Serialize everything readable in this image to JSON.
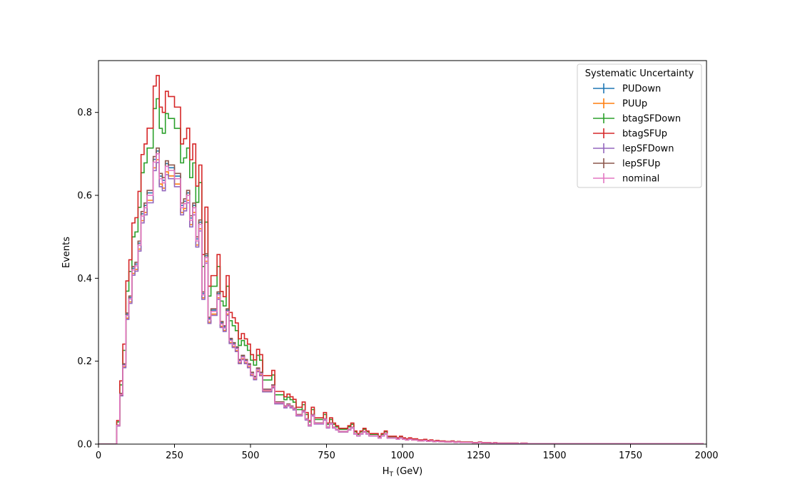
{
  "chart_data": {
    "type": "line",
    "step": true,
    "xlabel": "H",
    "xlabel_sub": "T",
    "xlabel_unit": " (GeV)",
    "ylabel": "Events",
    "xlim": [
      0,
      2000
    ],
    "ylim": [
      0,
      0.925
    ],
    "xticks": [
      0,
      250,
      500,
      750,
      1000,
      1250,
      1500,
      1750,
      2000
    ],
    "yticks": [
      0.0,
      0.2,
      0.4,
      0.6,
      0.8
    ],
    "grid": false,
    "legend": {
      "title": "Systematic Uncertainty",
      "placement": "top-right"
    },
    "bin_width": 10,
    "bin_edges_start": 0,
    "shape_centers": [
      5,
      15,
      25,
      35,
      45,
      55,
      65,
      75,
      85,
      95,
      105,
      115,
      125,
      135,
      145,
      155,
      165,
      175,
      185,
      195,
      205,
      215,
      225,
      235,
      245,
      255,
      265,
      275,
      285,
      295,
      305,
      315,
      325,
      335,
      345,
      355,
      365,
      375,
      385,
      395,
      405,
      415,
      425,
      435,
      445,
      455,
      465,
      475,
      485,
      495,
      505,
      515,
      525,
      535,
      545,
      555,
      565,
      575,
      585,
      595,
      605,
      615,
      625,
      635,
      645,
      655,
      665,
      675,
      685,
      695,
      705,
      715,
      725,
      735,
      745,
      755,
      765,
      775,
      785,
      795,
      805,
      815,
      825,
      835,
      845,
      855,
      865,
      875,
      885,
      895,
      905,
      915,
      925,
      935,
      945,
      955,
      965,
      975,
      985,
      995,
      1005,
      1015,
      1025,
      1035,
      1045,
      1055,
      1065,
      1075,
      1085,
      1095,
      1105,
      1115,
      1125,
      1135,
      1145,
      1155,
      1165,
      1175,
      1185,
      1195,
      1205,
      1215,
      1225,
      1235,
      1245,
      1255,
      1265,
      1275,
      1285,
      1295,
      1305,
      1315,
      1325,
      1335,
      1345,
      1355,
      1365,
      1375,
      1385,
      1395,
      1405,
      1415,
      1425,
      1435,
      1445,
      1455,
      1465,
      1475,
      1485,
      1495,
      1505,
      1515,
      1525,
      1535,
      1545,
      1555,
      1565,
      1575,
      1585,
      1595,
      1605,
      1615,
      1625,
      1635,
      1645,
      1655,
      1665,
      1675,
      1685,
      1695,
      1705,
      1715,
      1725,
      1735,
      1745,
      1755,
      1765,
      1775,
      1785,
      1795,
      1805,
      1815,
      1825,
      1835,
      1845,
      1855,
      1865,
      1875,
      1885,
      1895,
      1905,
      1915,
      1925,
      1935,
      1945,
      1955,
      1965,
      1975,
      1985,
      1995
    ],
    "nominal_values": [
      0,
      0,
      0,
      0,
      0,
      0,
      0.045,
      0.12,
      0.19,
      0.31,
      0.35,
      0.42,
      0.43,
      0.48,
      0.55,
      0.57,
      0.6,
      0.6,
      0.68,
      0.7,
      0.64,
      0.63,
      0.67,
      0.66,
      0.66,
      0.64,
      0.64,
      0.57,
      0.58,
      0.6,
      0.54,
      0.57,
      0.49,
      0.53,
      0.36,
      0.45,
      0.3,
      0.32,
      0.32,
      0.36,
      0.29,
      0.28,
      0.32,
      0.25,
      0.24,
      0.23,
      0.2,
      0.21,
      0.2,
      0.19,
      0.17,
      0.16,
      0.18,
      0.17,
      0.13,
      0.13,
      0.13,
      0.14,
      0.1,
      0.1,
      0.1,
      0.09,
      0.095,
      0.09,
      0.085,
      0.07,
      0.07,
      0.08,
      0.06,
      0.045,
      0.07,
      0.05,
      0.05,
      0.05,
      0.06,
      0.04,
      0.05,
      0.04,
      0.035,
      0.03,
      0.03,
      0.03,
      0.035,
      0.04,
      0.025,
      0.02,
      0.025,
      0.03,
      0.025,
      0.02,
      0.02,
      0.02,
      0.015,
      0.02,
      0.025,
      0.015,
      0.015,
      0.015,
      0.012,
      0.015,
      0.012,
      0.01,
      0.012,
      0.01,
      0.01,
      0.008,
      0.008,
      0.009,
      0.007,
      0.008,
      0.006,
      0.007,
      0.006,
      0.006,
      0.005,
      0.005,
      0.006,
      0.004,
      0.005,
      0.004,
      0.004,
      0.004,
      0.004,
      0.003,
      0.003,
      0.004,
      0.003,
      0.003,
      0.003,
      0.002,
      0.003,
      0.002,
      0.002,
      0.002,
      0.002,
      0.002,
      0.002,
      0.002,
      0.001,
      0.002,
      0.002,
      0.001,
      0.001,
      0.001,
      0.001,
      0.001,
      0.001,
      0.001,
      0.001,
      0.001,
      0.001,
      0.001,
      0.001,
      0.001,
      0.001,
      0.001,
      0.001,
      0.001,
      0.001,
      0.001,
      0.001,
      0.001,
      0.001,
      0.001,
      0.001,
      0.001,
      0.001,
      0.001,
      0.001,
      0.001,
      0.001,
      0.001,
      0.001,
      0.001,
      0.001,
      0.001,
      0.001,
      0.001,
      0.001,
      0.001,
      0.001,
      0.001,
      0.001,
      0.001,
      0.001,
      0.001,
      0.001,
      0.001,
      0.001,
      0.001,
      0.001,
      0.001,
      0.001,
      0.001,
      0.001,
      0.001,
      0.001,
      0.001,
      0.001
    ],
    "series": [
      {
        "name": "PUDown",
        "color": "#1f77b4",
        "scale": 1.01
      },
      {
        "name": "PUUp",
        "color": "#ff7f0e",
        "scale": 0.98
      },
      {
        "name": "btagSFDown",
        "color": "#2ca02c",
        "scale": 1.19
      },
      {
        "name": "btagSFUp",
        "color": "#d62728",
        "scale": 1.27
      },
      {
        "name": "lepSFDown",
        "color": "#9467bd",
        "scale": 0.97
      },
      {
        "name": "lepSFUp",
        "color": "#8c564b",
        "scale": 1.02
      },
      {
        "name": "nominal",
        "color": "#e377c2",
        "scale": 1.0
      }
    ]
  }
}
